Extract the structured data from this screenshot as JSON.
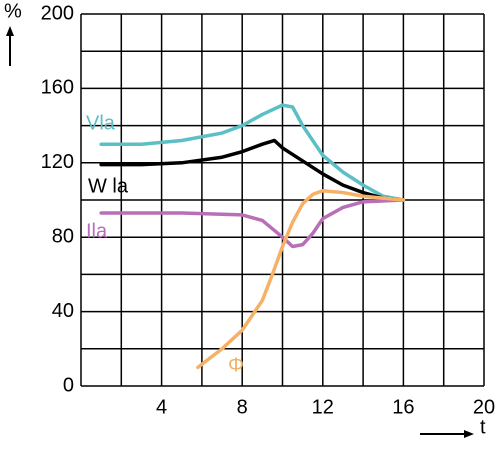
{
  "chart_data": {
    "type": "line",
    "y_label": "%",
    "x_label": "t",
    "xlim": [
      0,
      20
    ],
    "ylim": [
      0,
      200
    ],
    "xticks": [
      4,
      8,
      12,
      16,
      20
    ],
    "yticks": [
      0,
      40,
      80,
      120,
      160,
      200
    ],
    "xgrid": [
      0,
      2,
      4,
      6,
      8,
      10,
      12,
      14,
      16,
      18,
      20
    ],
    "ygrid": [
      0,
      20,
      40,
      60,
      80,
      100,
      120,
      140,
      160,
      180,
      200
    ],
    "series": [
      {
        "name": "Vla",
        "color": "#5bbfc6",
        "x": [
          1,
          3,
          5,
          7,
          8,
          9,
          10,
          10.5,
          11,
          12,
          13,
          14,
          15,
          16
        ],
        "values": [
          130,
          130,
          132,
          136,
          140,
          146,
          151,
          150,
          140,
          124,
          115,
          108,
          102,
          100
        ]
      },
      {
        "name": "W la",
        "color": "#000000",
        "x": [
          1,
          3,
          5,
          7,
          8,
          9,
          9.6,
          10,
          11,
          12,
          13,
          14,
          15,
          16
        ],
        "values": [
          119,
          119,
          120,
          123,
          126,
          130,
          132,
          128,
          121,
          114,
          108,
          104,
          101,
          100
        ]
      },
      {
        "name": "Ila",
        "color": "#b86fb8",
        "x": [
          1,
          5,
          8,
          9,
          10,
          10.5,
          11,
          11.5,
          12,
          13,
          14,
          16
        ],
        "values": [
          93,
          93,
          92,
          89,
          80,
          75,
          76,
          82,
          90,
          96,
          99,
          100
        ]
      },
      {
        "name": "Φ",
        "color": "#f5b266",
        "x": [
          5.8,
          7,
          8,
          9,
          9.5,
          10,
          10.5,
          11,
          11.5,
          12,
          13,
          14,
          16
        ],
        "values": [
          10,
          20,
          30,
          46,
          60,
          75,
          88,
          98,
          103,
          105,
          104,
          102,
          100
        ]
      }
    ]
  }
}
